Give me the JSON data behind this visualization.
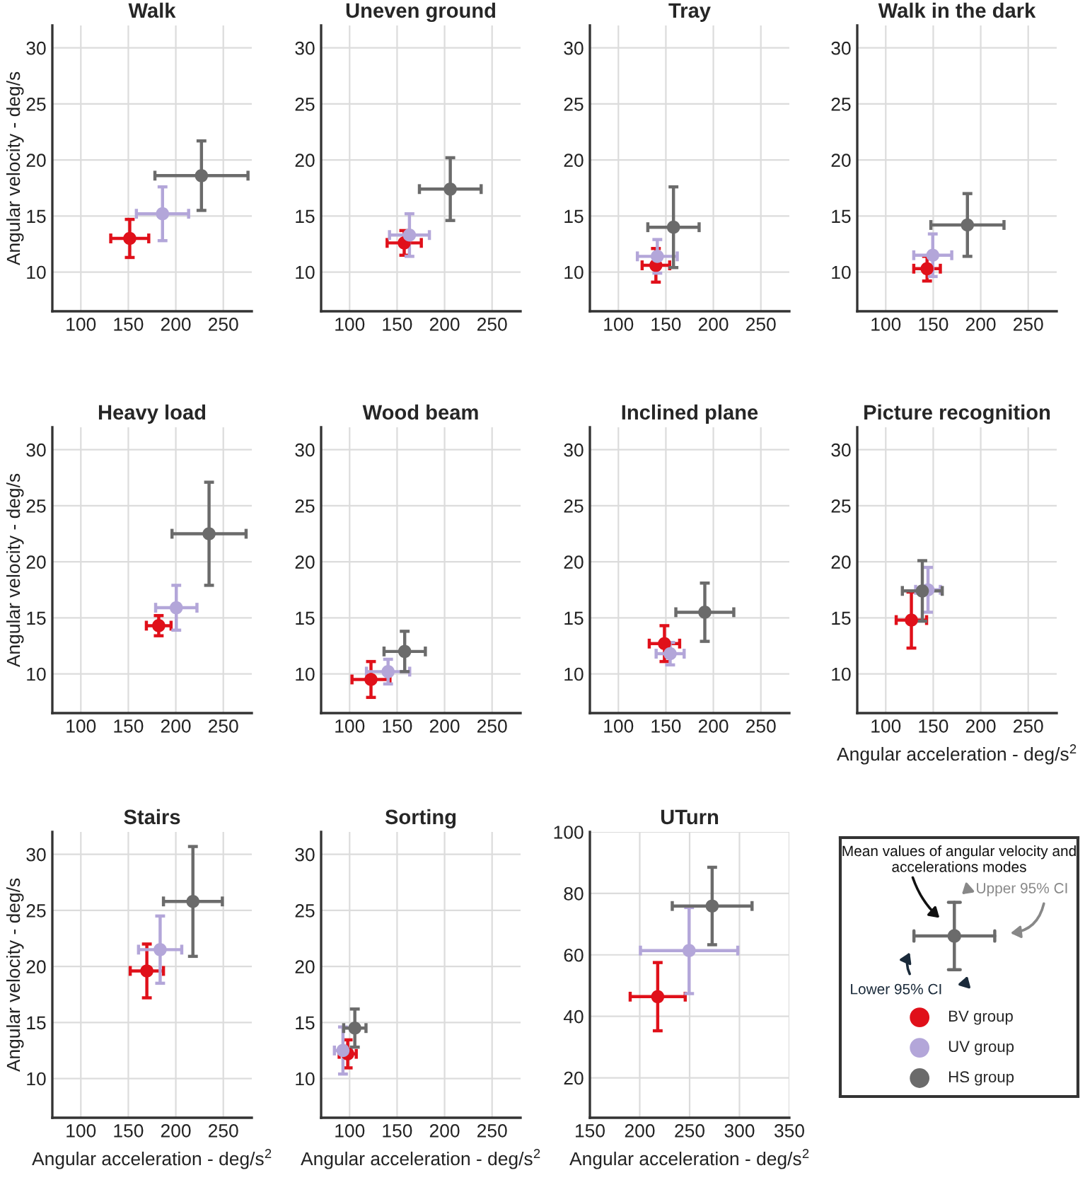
{
  "chart_data": [
    {
      "type": "scatter",
      "title": "Walk",
      "ylabel": "Angular velocity - deg/s",
      "xlim": [
        70,
        280
      ],
      "ylim": [
        6.5,
        32
      ],
      "xticks": [
        100,
        150,
        200,
        250
      ],
      "yticks": [
        10,
        15,
        20,
        25,
        30
      ],
      "grid": true,
      "marker": "circle",
      "series": [
        {
          "color": "#e0101a",
          "x": [
            151.5
          ],
          "values": [
            13.0
          ],
          "errors": [
            1.7
          ],
          "xerrors": [
            20
          ]
        },
        {
          "color": "#b3a6d9",
          "x": [
            186
          ],
          "values": [
            15.2
          ],
          "errors": [
            2.4
          ],
          "xerrors": [
            27.5
          ]
        },
        {
          "color": "#6b6b6b",
          "x": [
            227
          ],
          "values": [
            18.6
          ],
          "errors": [
            3.1
          ],
          "xerrors": [
            49
          ]
        }
      ]
    },
    {
      "type": "scatter",
      "title": "Uneven ground",
      "xlim": [
        70,
        280
      ],
      "ylim": [
        6.5,
        32
      ],
      "xticks": [
        100,
        150,
        200,
        250
      ],
      "yticks": [
        10,
        15,
        20,
        25,
        30
      ],
      "grid": true,
      "marker": "circle",
      "series": [
        {
          "color": "#e0101a",
          "x": [
            157.5
          ],
          "values": [
            12.6
          ],
          "errors": [
            1.1
          ],
          "xerrors": [
            18
          ]
        },
        {
          "color": "#b3a6d9",
          "x": [
            163
          ],
          "values": [
            13.3
          ],
          "errors": [
            1.9
          ],
          "xerrors": [
            21
          ]
        },
        {
          "color": "#6b6b6b",
          "x": [
            206
          ],
          "values": [
            17.4
          ],
          "errors": [
            2.8
          ],
          "xerrors": [
            32.5
          ]
        }
      ]
    },
    {
      "type": "scatter",
      "title": "Tray",
      "xlim": [
        70,
        280
      ],
      "ylim": [
        6.5,
        32
      ],
      "xticks": [
        100,
        150,
        200,
        250
      ],
      "yticks": [
        10,
        15,
        20,
        25,
        30
      ],
      "grid": true,
      "marker": "circle",
      "series": [
        {
          "color": "#e0101a",
          "x": [
            139.5
          ],
          "values": [
            10.6
          ],
          "errors": [
            1.5
          ],
          "xerrors": [
            14.5
          ]
        },
        {
          "color": "#b3a6d9",
          "x": [
            141
          ],
          "values": [
            11.4
          ],
          "errors": [
            1.5
          ],
          "xerrors": [
            21
          ]
        },
        {
          "color": "#6b6b6b",
          "x": [
            158
          ],
          "values": [
            14.0
          ],
          "errors": [
            3.6
          ],
          "xerrors": [
            27
          ]
        }
      ]
    },
    {
      "type": "scatter",
      "title": "Walk in the dark",
      "xlim": [
        70,
        280
      ],
      "ylim": [
        6.5,
        32
      ],
      "xticks": [
        100,
        150,
        200,
        250
      ],
      "yticks": [
        10,
        15,
        20,
        25,
        30
      ],
      "grid": true,
      "marker": "circle",
      "series": [
        {
          "color": "#e0101a",
          "x": [
            143.5
          ],
          "values": [
            10.3
          ],
          "errors": [
            1.1
          ],
          "xerrors": [
            14
          ]
        },
        {
          "color": "#b3a6d9",
          "x": [
            149.5
          ],
          "values": [
            11.5
          ],
          "errors": [
            1.9
          ],
          "xerrors": [
            20
          ]
        },
        {
          "color": "#6b6b6b",
          "x": [
            186
          ],
          "values": [
            14.2
          ],
          "errors": [
            2.8
          ],
          "xerrors": [
            38.5
          ]
        }
      ]
    },
    {
      "type": "scatter",
      "title": "Heavy load",
      "ylabel": "Angular velocity - deg/s",
      "xlim": [
        70,
        280
      ],
      "ylim": [
        6.5,
        32
      ],
      "xticks": [
        100,
        150,
        200,
        250
      ],
      "yticks": [
        10,
        15,
        20,
        25,
        30
      ],
      "grid": true,
      "marker": "circle",
      "series": [
        {
          "color": "#e0101a",
          "x": [
            182
          ],
          "values": [
            14.3
          ],
          "errors": [
            0.9
          ],
          "xerrors": [
            13
          ]
        },
        {
          "color": "#b3a6d9",
          "x": [
            200.5
          ],
          "values": [
            15.9
          ],
          "errors": [
            2.0
          ],
          "xerrors": [
            21.75
          ]
        },
        {
          "color": "#6b6b6b",
          "x": [
            235
          ],
          "values": [
            22.5
          ],
          "errors": [
            4.6
          ],
          "xerrors": [
            39
          ]
        }
      ]
    },
    {
      "type": "scatter",
      "title": "Wood beam",
      "xlim": [
        70,
        280
      ],
      "ylim": [
        6.5,
        32
      ],
      "xticks": [
        100,
        150,
        200,
        250
      ],
      "yticks": [
        10,
        15,
        20,
        25,
        30
      ],
      "grid": true,
      "marker": "circle",
      "series": [
        {
          "color": "#e0101a",
          "x": [
            122.5
          ],
          "values": [
            9.5
          ],
          "errors": [
            1.6
          ],
          "xerrors": [
            20
          ]
        },
        {
          "color": "#b3a6d9",
          "x": [
            140.5
          ],
          "values": [
            10.2
          ],
          "errors": [
            1.1
          ],
          "xerrors": [
            22.75
          ]
        },
        {
          "color": "#6b6b6b",
          "x": [
            158
          ],
          "values": [
            12.0
          ],
          "errors": [
            1.8
          ],
          "xerrors": [
            21.75
          ]
        }
      ]
    },
    {
      "type": "scatter",
      "title": "Inclined plane",
      "xlim": [
        70,
        280
      ],
      "ylim": [
        6.5,
        32
      ],
      "xticks": [
        100,
        150,
        200,
        250
      ],
      "yticks": [
        10,
        15,
        20,
        25,
        30
      ],
      "grid": true,
      "marker": "circle",
      "series": [
        {
          "color": "#e0101a",
          "x": [
            148.5
          ],
          "values": [
            12.7
          ],
          "errors": [
            1.6
          ],
          "xerrors": [
            16
          ]
        },
        {
          "color": "#b3a6d9",
          "x": [
            154.5
          ],
          "values": [
            11.8
          ],
          "errors": [
            1.0
          ],
          "xerrors": [
            14.75
          ]
        },
        {
          "color": "#6b6b6b",
          "x": [
            191
          ],
          "values": [
            15.5
          ],
          "errors": [
            2.6
          ],
          "xerrors": [
            30.5
          ]
        }
      ]
    },
    {
      "type": "scatter",
      "title": "Picture recognition",
      "xlabel": "Angular acceleration - deg/s$^{2}$",
      "xlim": [
        70,
        280
      ],
      "ylim": [
        6.5,
        32
      ],
      "xticks": [
        100,
        150,
        200,
        250
      ],
      "yticks": [
        10,
        15,
        20,
        25,
        30
      ],
      "grid": true,
      "marker": "circle",
      "series": [
        {
          "color": "#e0101a",
          "x": [
            127
          ],
          "values": [
            14.8
          ],
          "errors": [
            2.5
          ],
          "xerrors": [
            16
          ]
        },
        {
          "color": "#b3a6d9",
          "x": [
            144.5
          ],
          "values": [
            17.5
          ],
          "errors": [
            2.0
          ],
          "xerrors": [
            13
          ]
        },
        {
          "color": "#6b6b6b",
          "x": [
            138.5
          ],
          "values": [
            17.4
          ],
          "errors": [
            2.7
          ],
          "xerrors": [
            21
          ]
        }
      ]
    },
    {
      "type": "scatter",
      "title": "Stairs",
      "xlabel": "Angular acceleration - deg/s$^{2}$",
      "ylabel": "Angular velocity - deg/s",
      "xlim": [
        70,
        280
      ],
      "ylim": [
        6.5,
        32
      ],
      "xticks": [
        100,
        150,
        200,
        250
      ],
      "yticks": [
        10,
        15,
        20,
        25,
        30
      ],
      "grid": true,
      "marker": "circle",
      "series": [
        {
          "color": "#e0101a",
          "x": [
            169.5
          ],
          "values": [
            19.6
          ],
          "errors": [
            2.4
          ],
          "xerrors": [
            17.5
          ]
        },
        {
          "color": "#b3a6d9",
          "x": [
            183.5
          ],
          "values": [
            21.5
          ],
          "errors": [
            3.0
          ],
          "xerrors": [
            22.75
          ]
        },
        {
          "color": "#6b6b6b",
          "x": [
            218
          ],
          "values": [
            25.8
          ],
          "errors": [
            4.9
          ],
          "xerrors": [
            31
          ]
        }
      ]
    },
    {
      "type": "scatter",
      "title": "Sorting",
      "xlabel": "Angular acceleration - deg/s$^{2}$",
      "xlim": [
        70,
        280
      ],
      "ylim": [
        6.5,
        32
      ],
      "xticks": [
        100,
        150,
        200,
        250
      ],
      "yticks": [
        10,
        15,
        20,
        25,
        30
      ],
      "grid": true,
      "marker": "circle",
      "series": [
        {
          "color": "#e0101a",
          "x": [
            98
          ],
          "values": [
            12.2
          ],
          "errors": [
            1.25
          ],
          "xerrors": [
            9
          ]
        },
        {
          "color": "#b3a6d9",
          "x": [
            93
          ],
          "values": [
            12.5
          ],
          "errors": [
            2.1
          ],
          "xerrors": [
            9
          ]
        },
        {
          "color": "#6b6b6b",
          "x": [
            105.5
          ],
          "values": [
            14.5
          ],
          "errors": [
            1.7
          ],
          "xerrors": [
            11.75
          ]
        }
      ]
    },
    {
      "type": "scatter",
      "title": "UTurn",
      "xlabel": "Angular acceleration - deg/s$^{2}$",
      "xlim": [
        150,
        350
      ],
      "ylim": [
        7,
        100
      ],
      "xticks": [
        150,
        200,
        250,
        300,
        350
      ],
      "yticks": [
        20,
        40,
        60,
        80,
        100
      ],
      "grid": true,
      "marker": "circle",
      "series": [
        {
          "color": "#e0101a",
          "x": [
            218
          ],
          "values": [
            46.4
          ],
          "errors": [
            11.1
          ],
          "xerrors": [
            27.6
          ]
        },
        {
          "color": "#b3a6d9",
          "x": [
            249.5
          ],
          "values": [
            61.4
          ],
          "errors": [
            14.0
          ],
          "xerrors": [
            48.8
          ]
        },
        {
          "color": "#6b6b6b",
          "x": [
            272.6
          ],
          "values": [
            75.9
          ],
          "errors": [
            12.6
          ],
          "xerrors": [
            40
          ]
        }
      ]
    },
    {
      "type": "other",
      "annotations": [
        "Mean values of angular velocity and accelerations modes",
        "Upper 95% CI",
        "Lower 95% CI"
      ],
      "legend": "bottom",
      "series": [
        {
          "name": "BV group",
          "color": "#e0101a"
        },
        {
          "name": "UV group",
          "color": "#b3a6d9"
        },
        {
          "name": "HS group",
          "color": "#6b6b6b"
        }
      ]
    }
  ]
}
